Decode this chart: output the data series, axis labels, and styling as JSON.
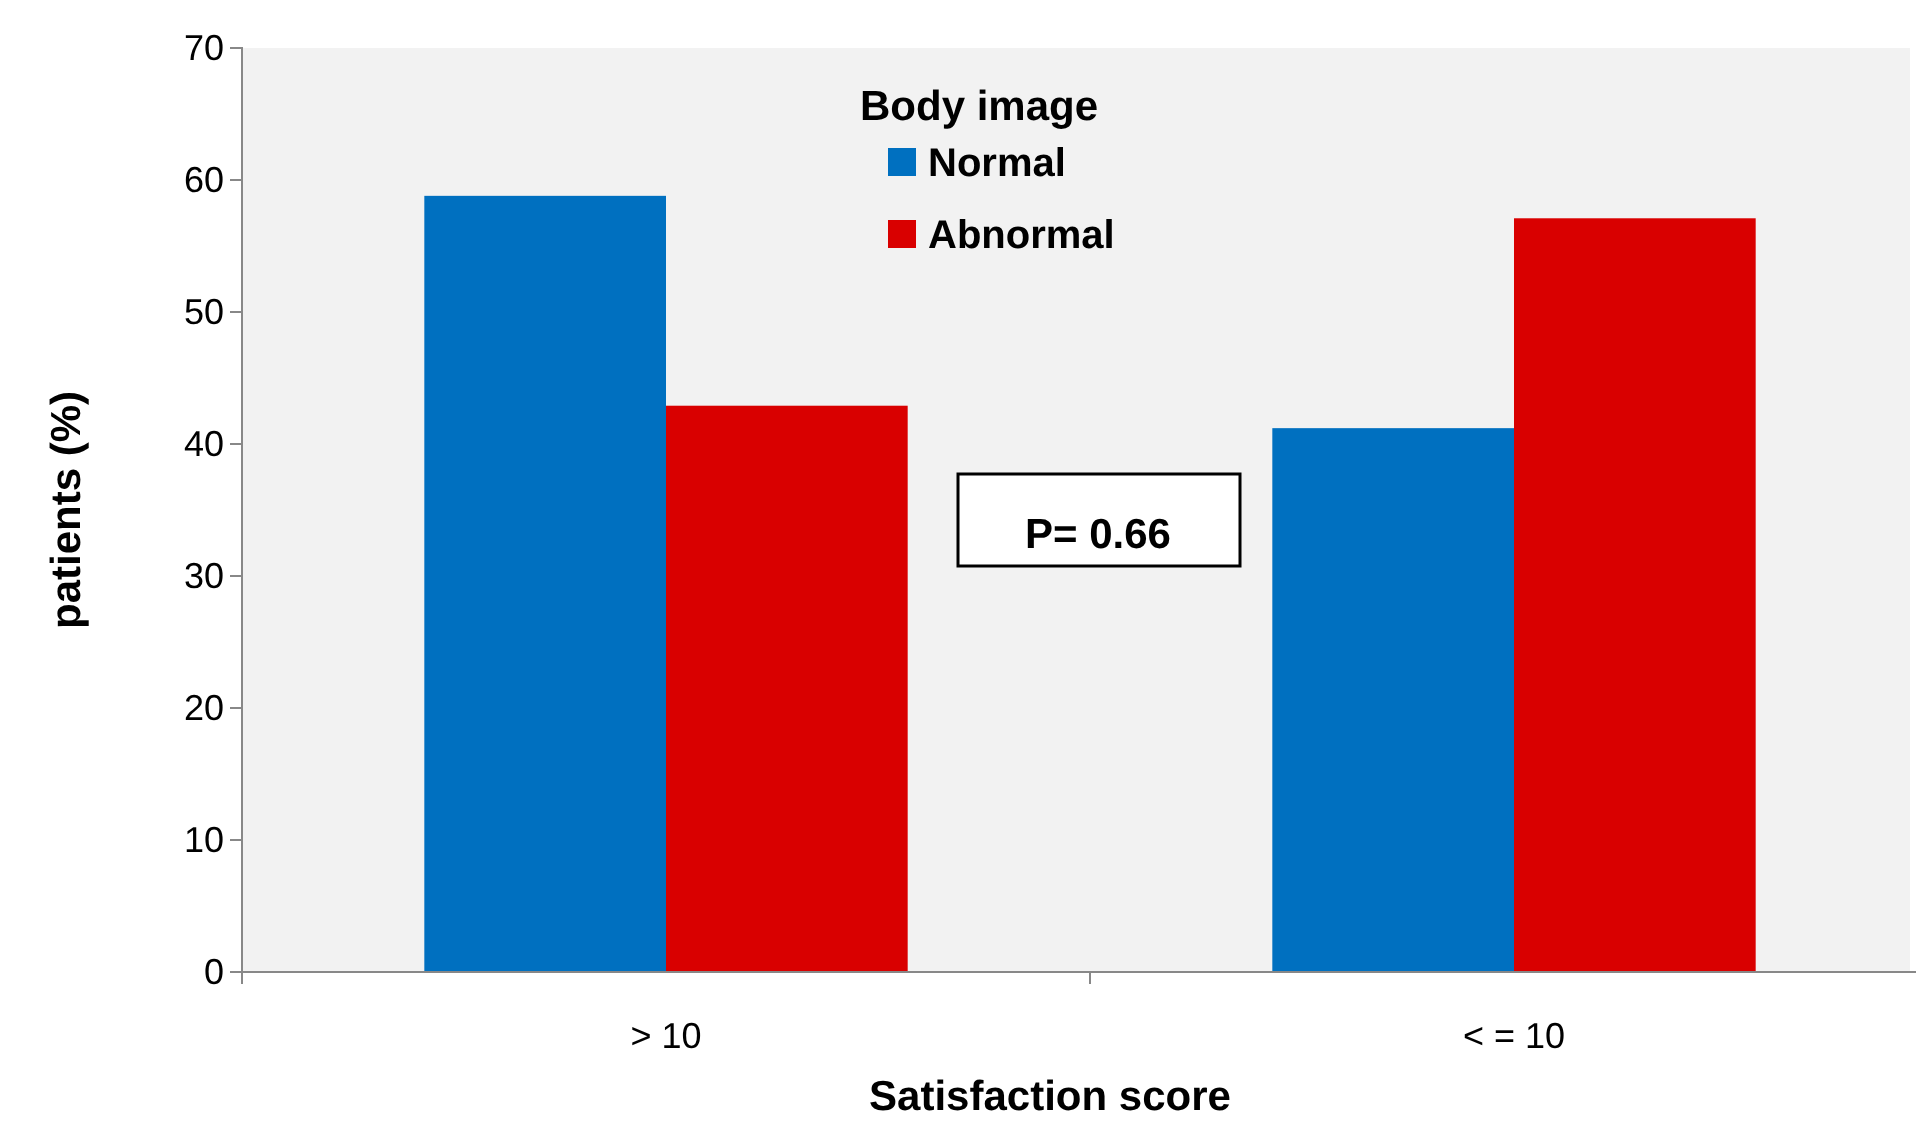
{
  "chart_data": {
    "type": "bar",
    "xlabel": "Satisfaction score",
    "ylabel": "patients (%)",
    "legend_title": "Body image",
    "legend": "top",
    "categories": [
      "> 10",
      "< = 10"
    ],
    "series": [
      {
        "name": "Normal",
        "color": "#0070c0",
        "values": [
          58.8,
          41.2
        ]
      },
      {
        "name": "Abnormal",
        "color": "#d90000",
        "values": [
          42.9,
          57.1
        ]
      }
    ],
    "ylim": [
      0,
      70
    ],
    "yticks": [
      0,
      10,
      20,
      30,
      40,
      50,
      60,
      70
    ],
    "grid": false,
    "annotations": [
      "P= 0.66"
    ]
  }
}
